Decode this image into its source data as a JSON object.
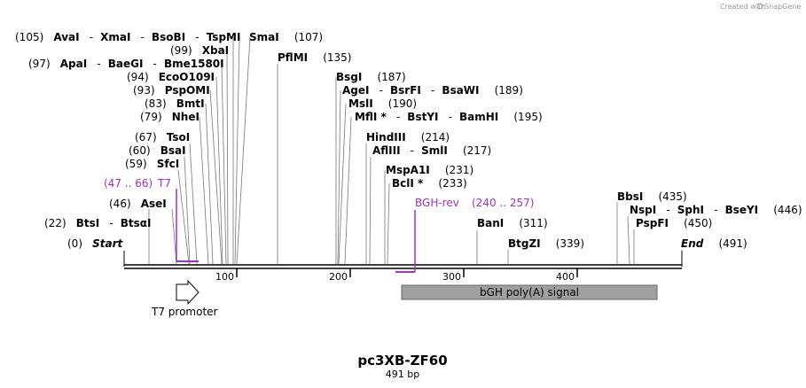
{
  "credit": {
    "text": "Created with",
    "brand": "SnapGene"
  },
  "map": {
    "name": "pc3XB-ZF60",
    "length_label": "491 bp",
    "length_bp": 491
  },
  "ticks": [
    "100",
    "200",
    "300",
    "400"
  ],
  "sites": {
    "start": {
      "pos": "(0)",
      "name": "Start"
    },
    "end": {
      "name": "End",
      "pos": "(491)"
    },
    "btsi": {
      "pos": "(22)",
      "name": "BtsI",
      "sep": "-",
      "name2": "BtsαI"
    },
    "asei": {
      "pos": "(46)",
      "name": "AseI"
    },
    "sfci": {
      "pos": "(59)",
      "name": "SfcI"
    },
    "bsai": {
      "pos": "(60)",
      "name": "BsaI"
    },
    "tsoi": {
      "pos": "(67)",
      "name": "TsoI"
    },
    "nhei": {
      "pos": "(79)",
      "name": "NheI"
    },
    "bmti": {
      "pos": "(83)",
      "name": "BmtI"
    },
    "pspomi": {
      "pos": "(93)",
      "name": "PspOMI"
    },
    "eco": {
      "pos": "(94)",
      "name": "EcoO109I"
    },
    "apai": {
      "pos": "(97)",
      "name": "ApaI",
      "sep1": "-",
      "name2": "BaeGI",
      "sep2": "-",
      "name3": "Bme1580I"
    },
    "xbai": {
      "pos": "(99)",
      "name": "XbaI"
    },
    "avai": {
      "pos": "(105)",
      "name": "AvaI",
      "sep1": "-",
      "name2": "XmaI",
      "sep2": "-",
      "name3": "BsoBI",
      "sep3": "-",
      "name4": "TspMI"
    },
    "smai": {
      "name": "SmaI",
      "pos": "(107)"
    },
    "pflmi": {
      "name": "PflMI",
      "pos": "(135)"
    },
    "bsgi": {
      "name": "BsgI",
      "pos": "(187)"
    },
    "agei": {
      "name": "AgeI",
      "sep1": "-",
      "name2": "BsrFI",
      "sep2": "-",
      "name3": "BsaWI",
      "pos": "(189)"
    },
    "msli": {
      "name": "MslI",
      "pos": "(190)"
    },
    "mfli": {
      "name": "MflI *",
      "sep1": "-",
      "name2": "BstYI",
      "sep2": "-",
      "name3": "BamHI",
      "pos": "(195)"
    },
    "hindiii": {
      "name": "HindIII",
      "pos": "(214)"
    },
    "afliii": {
      "name": "AflIII",
      "sep": "-",
      "name2": "SmlI",
      "pos": "(217)"
    },
    "mspa1i": {
      "name": "MspA1I",
      "pos": "(231)"
    },
    "bcli": {
      "name": "BclI *",
      "pos": "(233)"
    },
    "bani": {
      "name": "BanI",
      "pos": "(311)"
    },
    "btgzi": {
      "name": "BtgZI",
      "pos": "(339)"
    },
    "bbsi": {
      "name": "BbsI",
      "pos": "(435)"
    },
    "nspi": {
      "name": "NspI",
      "sep1": "-",
      "name2": "SphI",
      "sep2": "-",
      "name3": "BseYI",
      "pos": "(446)"
    },
    "pspfi": {
      "name": "PspFI",
      "pos": "(450)"
    }
  },
  "primers": {
    "t7": {
      "range": "(47 .. 66)",
      "name": "T7"
    },
    "bgh": {
      "name": "BGH-rev",
      "range": "(240 .. 257)"
    }
  },
  "features": {
    "t7_promoter": {
      "label": "T7 promoter"
    },
    "bgh_polya": {
      "label": "bGH poly(A) signal"
    }
  },
  "colors": {
    "primer": "#9933cc",
    "feature_fill": "#a0a0a0",
    "backbone": "#000000"
  }
}
